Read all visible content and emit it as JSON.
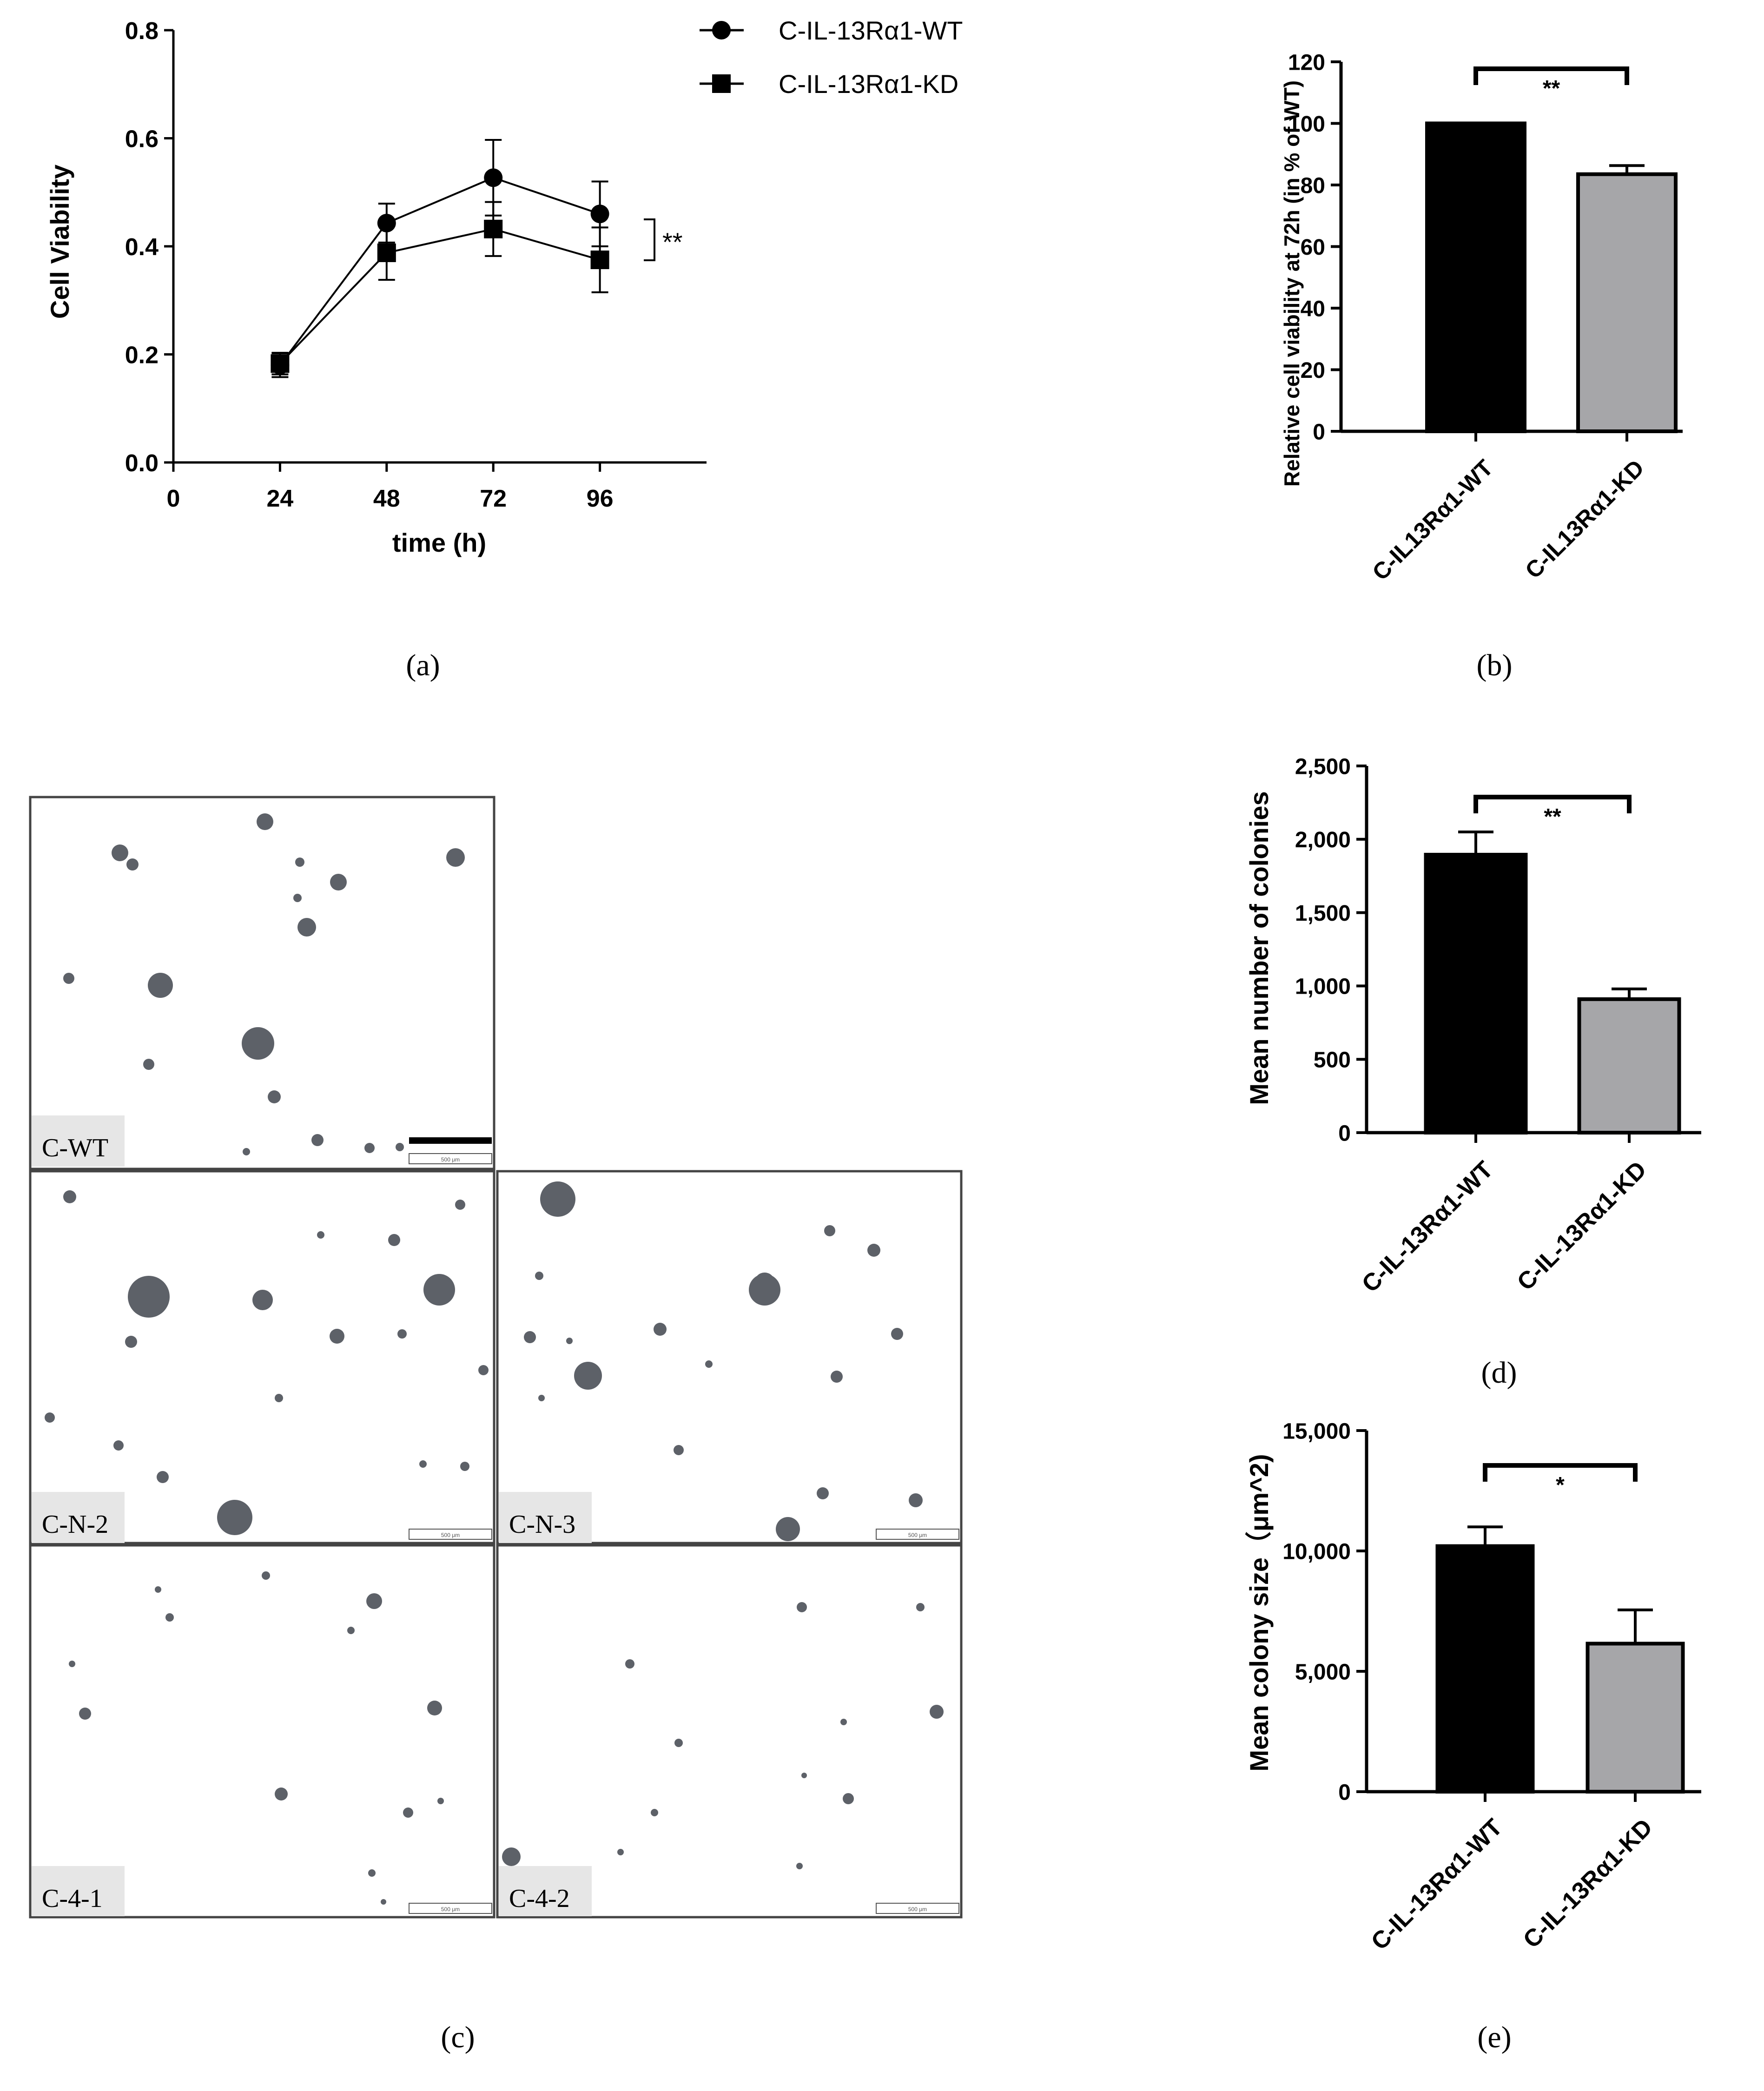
{
  "colors": {
    "black": "#000000",
    "grey": "#a6a6a9",
    "bg": "#ffffff",
    "label_bg": "#e6e6e6"
  },
  "panels": {
    "a": {
      "caption": "(a)"
    },
    "b": {
      "caption": "(b)"
    },
    "c": {
      "caption": "(c)"
    },
    "d": {
      "caption": "(d)"
    },
    "e": {
      "caption": "(e)"
    }
  },
  "plates": {
    "labels": [
      "C-WT",
      "C-N-2",
      "C-N-3",
      "C-4-1",
      "C-4-2"
    ],
    "scale_text": "500 μm"
  },
  "chart_data": [
    {
      "id": "a",
      "type": "line",
      "title": "",
      "xlabel": "time (h)",
      "ylabel": "Cell Viability",
      "xlim": [
        0,
        120
      ],
      "ylim": [
        0,
        0.8
      ],
      "xticks": [
        0,
        24,
        48,
        72,
        96
      ],
      "yticks": [
        "0.0",
        "0.2",
        "0.4",
        "0.6",
        "0.8"
      ],
      "x": [
        24,
        48,
        72,
        96
      ],
      "series": [
        {
          "name": "C-IL-13Rα1-WT",
          "marker": "circle",
          "values": [
            0.18,
            0.443,
            0.527,
            0.46
          ],
          "errors": [
            0.022,
            0.036,
            0.07,
            0.06
          ]
        },
        {
          "name": "C-IL-13Rα1-KD",
          "marker": "square",
          "values": [
            0.183,
            0.388,
            0.432,
            0.375
          ],
          "errors": [
            0.02,
            0.05,
            0.05,
            0.06
          ]
        }
      ],
      "significance": "**",
      "legend": "top-right"
    },
    {
      "id": "b",
      "type": "bar",
      "ylabel": "Relative cell viability at 72h (in % of WT)",
      "categories": [
        "C-IL13Rα1-WT",
        "C-IL13Rα1-KD"
      ],
      "values": [
        100,
        83.5
      ],
      "errors": [
        0,
        2.8
      ],
      "ylim": [
        0,
        120
      ],
      "yticks": [
        "0",
        "20",
        "40",
        "60",
        "80",
        "100",
        "120"
      ],
      "significance": "**"
    },
    {
      "id": "d",
      "type": "bar",
      "ylabel": "Mean number of colonies",
      "categories": [
        "C-IL-13Rα1-WT",
        "C-IL-13Rα1-KD"
      ],
      "values": [
        1895,
        910
      ],
      "errors": [
        155,
        70
      ],
      "ylim": [
        0,
        2500
      ],
      "yticks": [
        "0",
        "500",
        "1,000",
        "1,500",
        "2,000",
        "2,500"
      ],
      "significance": "**"
    },
    {
      "id": "e",
      "type": "bar",
      "ylabel": "Mean colony size（μm^2)",
      "categories": [
        "C-IL-13Rα1-WT",
        "C-IL-13Rα1-KD"
      ],
      "values": [
        10200,
        6150
      ],
      "errors": [
        800,
        1400
      ],
      "ylim": [
        0,
        15000
      ],
      "yticks": [
        "0",
        "5,000",
        "10,000",
        "15,000"
      ],
      "significance": "*"
    }
  ]
}
